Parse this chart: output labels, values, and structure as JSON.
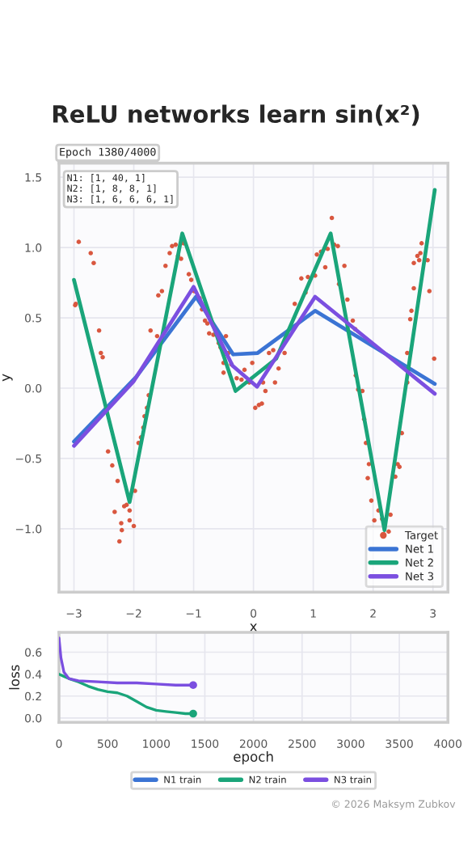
{
  "chart_data": [
    {
      "type": "line",
      "title": "ReLU networks learn sin(x²)",
      "xlabel": "x",
      "ylabel": "y",
      "xlim": [
        -3.25,
        3.25
      ],
      "xticks": [
        {
          "value": -3,
          "label": "−3"
        },
        {
          "value": -2,
          "label": "−2"
        },
        {
          "value": -1,
          "label": "−1"
        },
        0,
        1,
        2,
        3
      ],
      "ylim": [
        -1.45,
        1.6
      ],
      "yticks": [
        {
          "value": -1.0,
          "label": "−1.0"
        },
        {
          "value": -0.5,
          "label": "−0.5"
        },
        {
          "value": 0.0,
          "label": "0.0"
        },
        {
          "value": 0.5,
          "label": "0.5"
        },
        {
          "value": 1.0,
          "label": "1.0"
        },
        {
          "value": 1.5,
          "label": "1.5"
        }
      ],
      "grid": true,
      "legend": "bottom right",
      "annotations": [
        "Epoch 1380/4000",
        "N1: [1, 40, 1]\nN2: [1, 8, 8, 1]\nN3: [1, 6, 6, 6, 1]"
      ],
      "series": [
        {
          "name": "Target",
          "type": "scatter",
          "color": "#d9573f",
          "x": [
            -2.98,
            -2.97,
            -2.92,
            -2.72,
            -2.67,
            -2.58,
            -2.55,
            -2.52,
            -2.43,
            -2.36,
            -2.27,
            -2.32,
            -2.21,
            -2.2,
            -2.24,
            -2.16,
            -2.12,
            -2.07,
            -2.07,
            -2.0,
            -1.98,
            -1.92,
            -1.88,
            -1.84,
            -1.82,
            -1.78,
            -1.75,
            -1.72,
            -1.61,
            -1.59,
            -1.53,
            -1.47,
            -1.4,
            -1.36,
            -1.3,
            -1.26,
            -1.21,
            -1.17,
            -1.08,
            -1.04,
            -0.99,
            -0.9,
            -0.86,
            -0.81,
            -0.77,
            -0.74,
            -0.67,
            -0.58,
            -0.55,
            -0.46,
            -0.42,
            -0.5,
            -0.5,
            -0.37,
            -0.28,
            -0.2,
            -0.15,
            -0.07,
            0.03,
            0.09,
            0.14,
            0.2,
            0.16,
            0.36,
            0.42,
            -0.02,
            0.26,
            0.33,
            0.52,
            0.69,
            0.8,
            0.87,
            0.91,
            1.03,
            1.06,
            1.13,
            1.2,
            1.24,
            1.31,
            1.35,
            1.41,
            1.43,
            1.52,
            1.57,
            1.66,
            1.7,
            1.71,
            1.75,
            1.82,
            1.85,
            1.88,
            1.93,
            1.91,
            1.97,
            2.02,
            2.09,
            2.15,
            2.26,
            2.29,
            2.37,
            2.41,
            2.44,
            2.48,
            2.57,
            2.57,
            2.62,
            2.64,
            2.68,
            2.68,
            2.74,
            2.79,
            2.77,
            2.81,
            2.91,
            2.94,
            3.02
          ],
          "values": [
            0.59,
            0.6,
            1.04,
            0.96,
            0.89,
            0.41,
            0.25,
            0.22,
            -0.45,
            -0.55,
            -0.66,
            -0.88,
            -0.96,
            -1.01,
            -1.09,
            -0.84,
            -0.83,
            -0.94,
            -0.87,
            -0.98,
            -0.73,
            -0.39,
            -0.35,
            -0.28,
            -0.2,
            -0.14,
            -0.05,
            0.41,
            0.37,
            0.66,
            0.69,
            0.87,
            0.96,
            1.01,
            1.02,
            0.94,
            0.92,
            1.03,
            0.81,
            0.77,
            0.69,
            0.64,
            0.56,
            0.48,
            0.46,
            0.39,
            0.38,
            0.32,
            0.29,
            0.37,
            0.25,
            0.18,
            0.11,
            0.17,
            0.07,
            0.06,
            0.13,
            0.04,
            -0.14,
            -0.12,
            -0.11,
            -0.02,
            0.04,
            0.04,
            0.14,
            0.18,
            0.25,
            0.27,
            0.25,
            0.6,
            0.78,
            0.68,
            0.79,
            0.8,
            0.95,
            0.97,
            0.86,
            0.99,
            1.21,
            1.02,
            1.01,
            0.74,
            0.87,
            0.63,
            0.48,
            0.42,
            0.09,
            -0.01,
            -0.02,
            -0.22,
            -0.39,
            -0.54,
            -0.64,
            -0.8,
            -0.94,
            -0.87,
            -0.93,
            -1.02,
            -0.9,
            -0.63,
            -0.54,
            -0.56,
            -0.32,
            0.04,
            0.25,
            0.49,
            0.55,
            0.71,
            0.89,
            0.94,
            0.96,
            0.91,
            1.03,
            0.91,
            0.69,
            0.21
          ]
        },
        {
          "name": "Net 1",
          "color": "#3b74d4",
          "x": [
            -3.0,
            -1.96,
            -0.96,
            -0.34,
            0.07,
            1.03,
            3.03
          ],
          "values": [
            -0.38,
            0.08,
            0.65,
            0.24,
            0.25,
            0.55,
            0.03
          ]
        },
        {
          "name": "Net 2",
          "color": "#1aa57a",
          "x": [
            -3.0,
            -2.07,
            -1.19,
            -0.3,
            0.38,
            1.29,
            2.19,
            3.03
          ],
          "values": [
            0.77,
            -0.81,
            1.1,
            -0.02,
            0.21,
            1.1,
            -1.01,
            1.41
          ]
        },
        {
          "name": "Net 3",
          "color": "#7b4fe0",
          "x": [
            -3.0,
            -2.0,
            -1.0,
            -0.35,
            0.06,
            1.03,
            3.03
          ],
          "values": [
            -0.41,
            0.05,
            0.72,
            0.16,
            0.01,
            0.65,
            -0.04
          ]
        }
      ]
    },
    {
      "type": "line",
      "xlabel": "epoch",
      "ylabel": "loss",
      "xlim": [
        0,
        4000
      ],
      "xticks": [
        0,
        500,
        1000,
        1500,
        2000,
        2500,
        3000,
        3500,
        4000
      ],
      "ylim": [
        -0.04,
        0.78
      ],
      "yticks": [
        {
          "value": 0.0,
          "label": "0.0"
        },
        {
          "value": 0.2,
          "label": "0.2"
        },
        {
          "value": 0.4,
          "label": "0.4"
        },
        {
          "value": 0.6,
          "label": "0.6"
        }
      ],
      "grid": true,
      "legend": "bottom",
      "annotations": [
        "© 2026 Maksym Zubkov"
      ],
      "series": [
        {
          "name": "N1 train",
          "color": "#3b74d4"
        },
        {
          "name": "N2 train",
          "color": "#1aa57a",
          "x": [
            0,
            50,
            100,
            200,
            300,
            400,
            500,
            600,
            700,
            800,
            900,
            1000,
            1100,
            1200,
            1300,
            1380
          ],
          "values": [
            0.4,
            0.38,
            0.36,
            0.33,
            0.29,
            0.26,
            0.24,
            0.23,
            0.2,
            0.15,
            0.1,
            0.07,
            0.06,
            0.05,
            0.04,
            0.04
          ]
        },
        {
          "name": "N3 train",
          "color": "#7b4fe0",
          "x": [
            0,
            20,
            50,
            100,
            200,
            400,
            600,
            800,
            1000,
            1200,
            1380
          ],
          "values": [
            0.73,
            0.55,
            0.42,
            0.36,
            0.34,
            0.33,
            0.32,
            0.32,
            0.31,
            0.3,
            0.3
          ]
        },
        {
          "type": "scatter",
          "color": "#1aa57a",
          "x": [
            1380
          ],
          "values": [
            0.04
          ]
        },
        {
          "type": "scatter",
          "color": "#7b4fe0",
          "x": [
            1380
          ],
          "values": [
            0.3
          ]
        }
      ]
    }
  ]
}
